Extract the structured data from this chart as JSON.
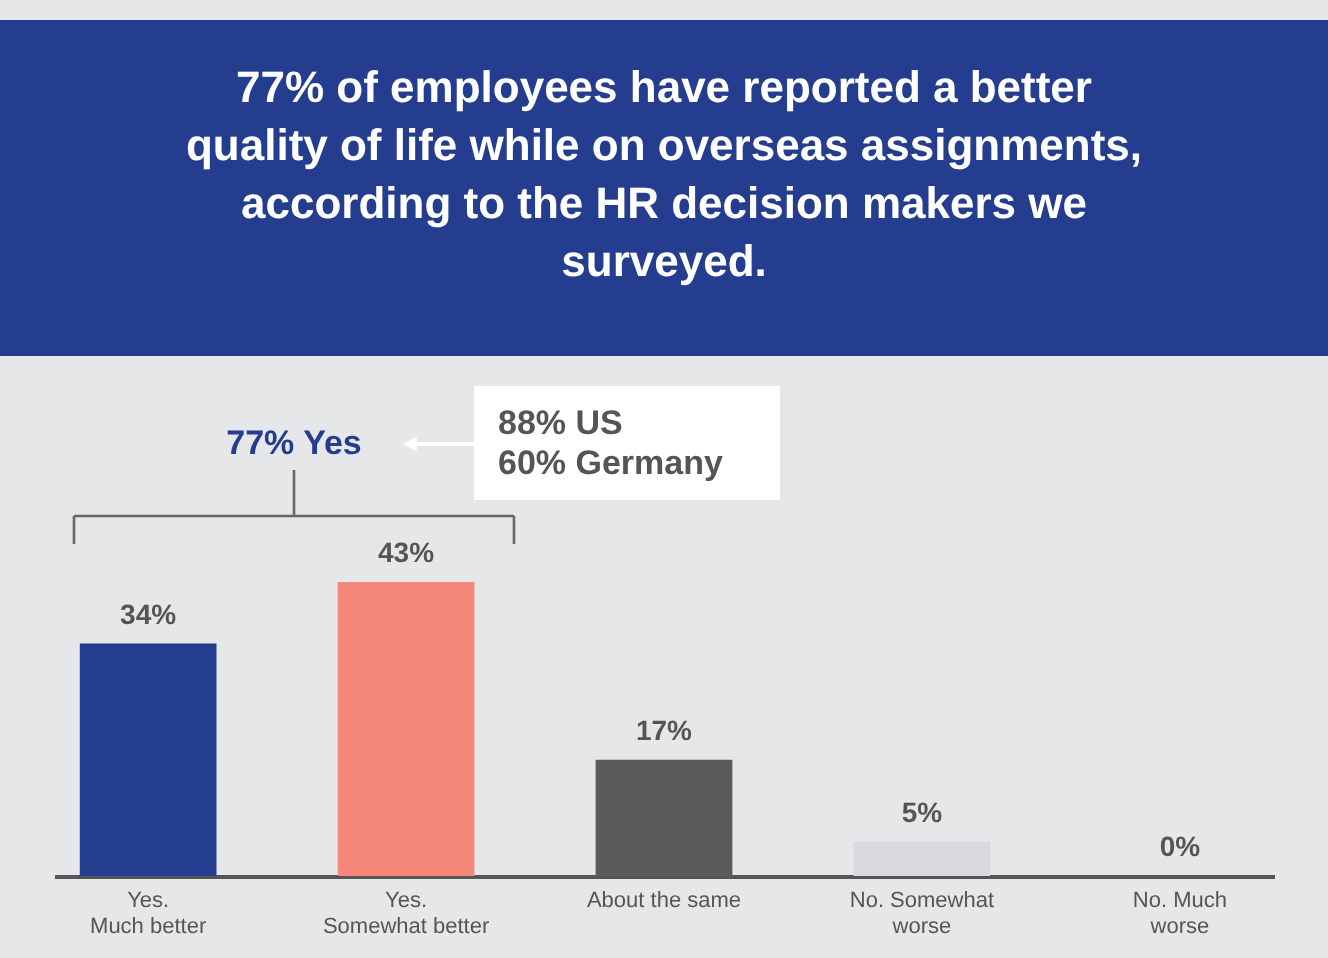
{
  "chart_data": {
    "type": "bar",
    "title": "77% of employees have reported a better quality of life while on overseas assignments, according to the HR decision makers we surveyed.",
    "categories": [
      "Yes.\nMuch better",
      "Yes.\nSomewhat better",
      "About the same",
      "No.  Somewhat\nworse",
      "No. Much\nworse"
    ],
    "values": [
      34,
      43,
      17,
      5,
      0
    ],
    "colors": [
      "#253d8f",
      "#f4867a",
      "#5a5a5a",
      "#d8d9dc",
      "#d8d9dc"
    ],
    "value_labels": [
      "34%",
      "43%",
      "17%",
      "5%",
      "0%"
    ],
    "annotations": [
      "77% Yes",
      "88% US\n60% Germany"
    ]
  }
}
